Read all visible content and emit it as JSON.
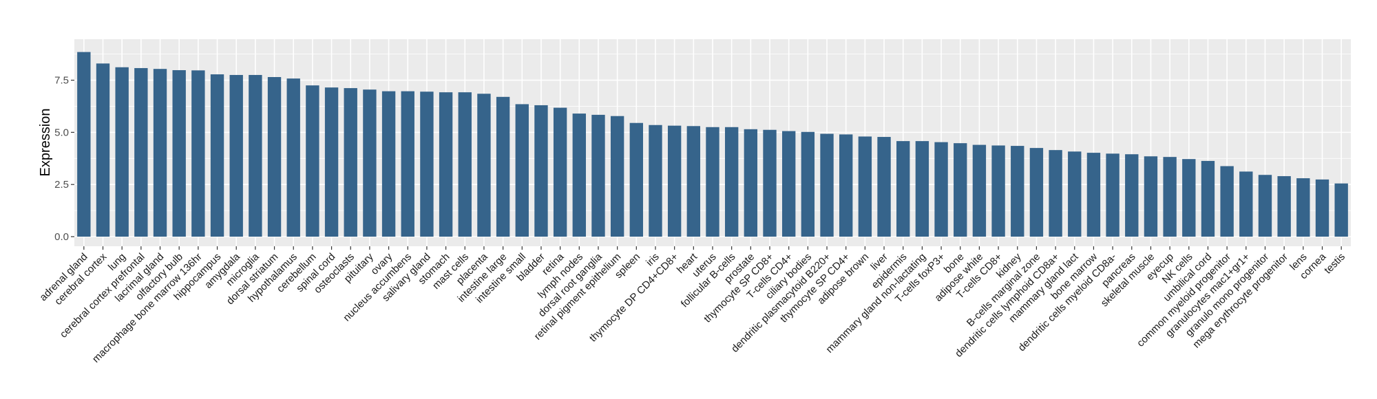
{
  "chart_data": {
    "type": "bar",
    "title": "",
    "xlabel": "",
    "ylabel": "Expression",
    "ylim": [
      0,
      9.2
    ],
    "yticks": [
      0.0,
      2.5,
      5.0,
      7.5
    ],
    "ytick_labels": [
      "0.0",
      "2.5",
      "5.0",
      "7.5"
    ],
    "grid": true,
    "bar_color": "#36648b",
    "panel_color": "#ebebeb",
    "categories": [
      "adrenal gland",
      "cerebral cortex",
      "lung",
      "cerebral cortex prefrontal",
      "lacrimal gland",
      "olfactory bulb",
      "macrophage bone marrow 136hr",
      "hippocampus",
      "amygdala",
      "microglia",
      "dorsal striatum",
      "hypothalamus",
      "cerebellum",
      "spinal cord",
      "osteoclasts",
      "pituitary",
      "ovary",
      "nucleus accumbens",
      "salivary gland",
      "stomach",
      "mast cells",
      "placenta",
      "intestine large",
      "intestine small",
      "bladder",
      "retina",
      "lymph nodes",
      "dorsal root ganglia",
      "retinal pigment epithelium",
      "spleen",
      "iris",
      "thymocyte DP CD4+CD8+",
      "heart",
      "uterus",
      "follicular B-cells",
      "prostate",
      "thymocyte SP CD8+",
      "T-cells CD4+",
      "ciliary bodies",
      "dendritic plasmacytoid B220+",
      "thymocyte SP CD4+",
      "adipose brown",
      "liver",
      "epidermis",
      "mammary gland non-lactating",
      "T-cells foxP3+",
      "bone",
      "adipose white",
      "T-cells CD8+",
      "kidney",
      "B-cells marginal zone",
      "dendritic cells lymphoid CD8a+",
      "mammary gland lact",
      "bone marrow",
      "dendritic cells myeloid CD8a-",
      "pancreas",
      "skeletal muscle",
      "eyecup",
      "NK cells",
      "umbilical cord",
      "common myeloid progenitor",
      "granulocytes mac1+gr1+",
      "granulo mono progenitor",
      "mega erythrocyte progenitor",
      "lens",
      "cornea",
      "testis"
    ],
    "values": [
      8.85,
      8.3,
      8.12,
      8.08,
      8.04,
      7.98,
      7.97,
      7.78,
      7.75,
      7.75,
      7.65,
      7.58,
      7.25,
      7.15,
      7.12,
      7.05,
      6.97,
      6.97,
      6.95,
      6.92,
      6.92,
      6.85,
      6.7,
      6.35,
      6.3,
      6.18,
      5.9,
      5.84,
      5.78,
      5.45,
      5.35,
      5.32,
      5.3,
      5.25,
      5.25,
      5.15,
      5.12,
      5.06,
      5.02,
      4.93,
      4.9,
      4.8,
      4.78,
      4.58,
      4.58,
      4.53,
      4.48,
      4.4,
      4.37,
      4.35,
      4.25,
      4.15,
      4.08,
      4.02,
      3.98,
      3.95,
      3.85,
      3.82,
      3.72,
      3.63,
      3.38,
      3.12,
      2.96,
      2.9,
      2.8,
      2.74,
      2.55
    ]
  }
}
